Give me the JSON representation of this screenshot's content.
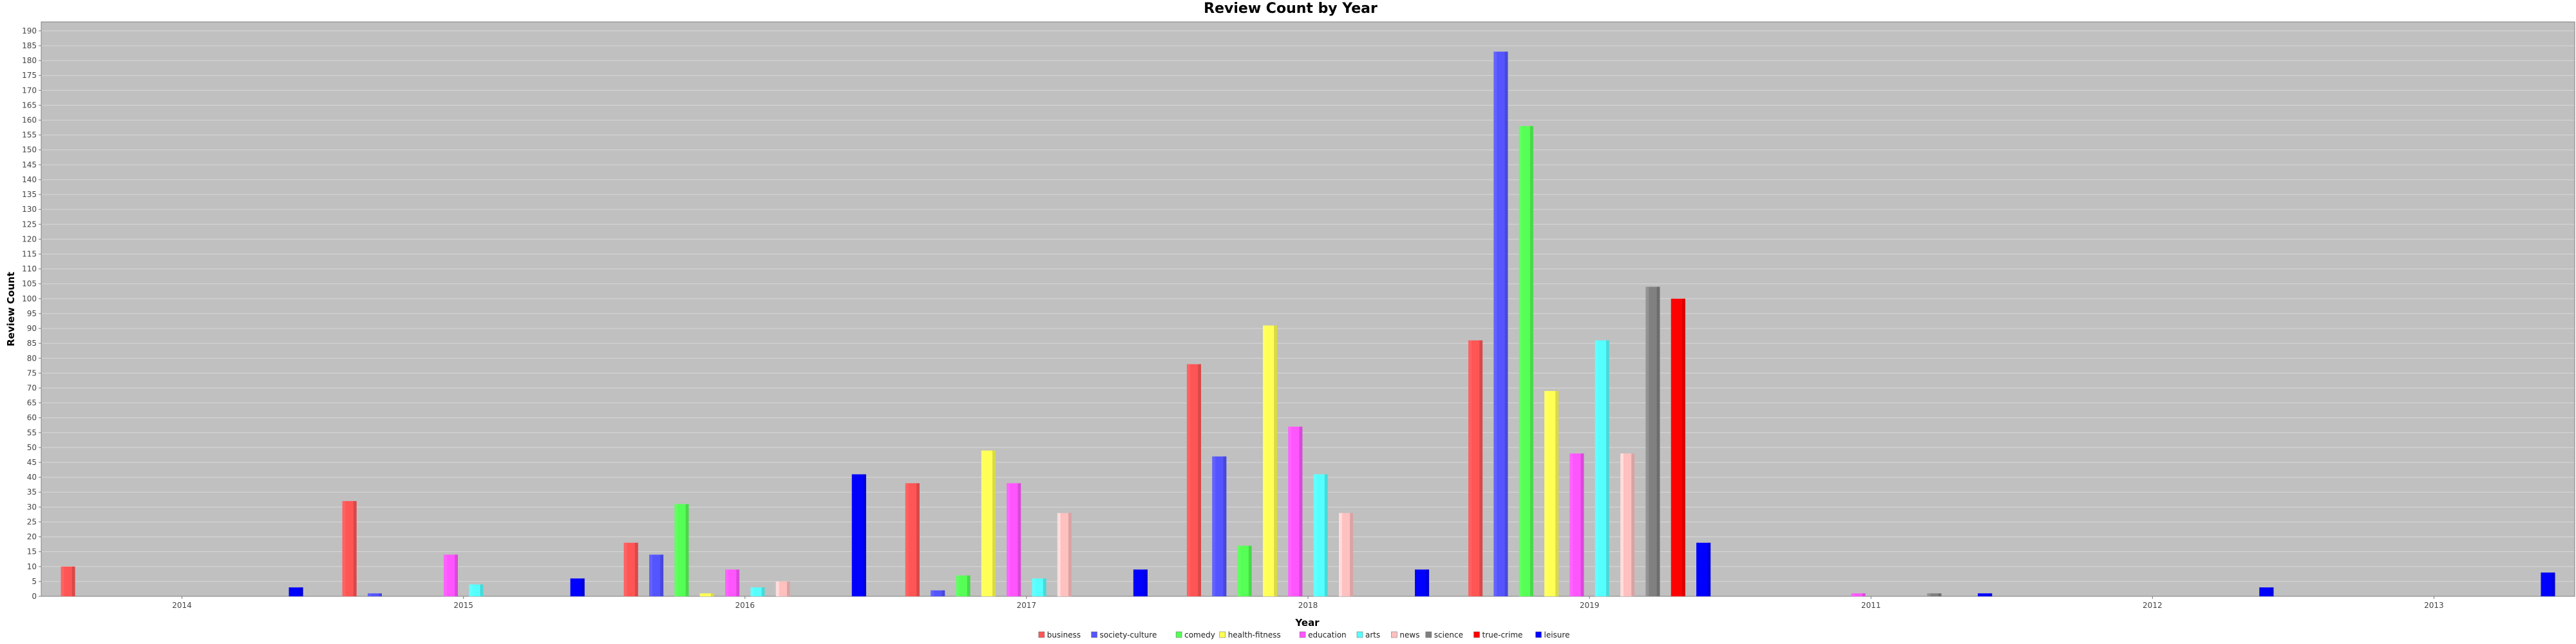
{
  "chart_data": {
    "type": "bar",
    "title": "Review Count by Year",
    "xlabel": "Year",
    "ylabel": "Review Count",
    "ylim": [
      0,
      193
    ],
    "ytick_step": 5,
    "grid": true,
    "legend_position": "bottom",
    "categories": [
      "2014",
      "2015",
      "2016",
      "2017",
      "2018",
      "2019",
      "2011",
      "2012",
      "2013"
    ],
    "series": [
      {
        "name": "business",
        "color": "#ff5555",
        "values": [
          10,
          32,
          18,
          38,
          78,
          86,
          0,
          0,
          0
        ]
      },
      {
        "name": "society-culture",
        "color": "#5555ff",
        "values": [
          0,
          1,
          14,
          2,
          47,
          183,
          0,
          0,
          0
        ]
      },
      {
        "name": "comedy",
        "color": "#55ff55",
        "values": [
          0,
          0,
          31,
          7,
          17,
          158,
          0,
          0,
          0
        ]
      },
      {
        "name": "health-fitness",
        "color": "#ffff55",
        "values": [
          0,
          0,
          1,
          49,
          91,
          69,
          0,
          0,
          0
        ]
      },
      {
        "name": "education",
        "color": "#ff55ff",
        "values": [
          0,
          14,
          9,
          38,
          57,
          48,
          1,
          0,
          0
        ]
      },
      {
        "name": "arts",
        "color": "#55ffff",
        "values": [
          0,
          4,
          3,
          6,
          41,
          86,
          0,
          0,
          0
        ]
      },
      {
        "name": "news",
        "color": "#ffc0c0",
        "values": [
          0,
          0,
          5,
          28,
          28,
          48,
          0,
          0,
          0
        ]
      },
      {
        "name": "science",
        "color": "#808080",
        "values": [
          0,
          0,
          0,
          0,
          0,
          104,
          1,
          0,
          0
        ]
      },
      {
        "name": "true-crime",
        "color": "#ff0000",
        "values": [
          0,
          0,
          0,
          0,
          0,
          100,
          0,
          0,
          0
        ]
      },
      {
        "name": "leisure",
        "color": "#0000ff",
        "values": [
          3,
          6,
          41,
          9,
          9,
          18,
          1,
          3,
          8
        ]
      }
    ]
  }
}
